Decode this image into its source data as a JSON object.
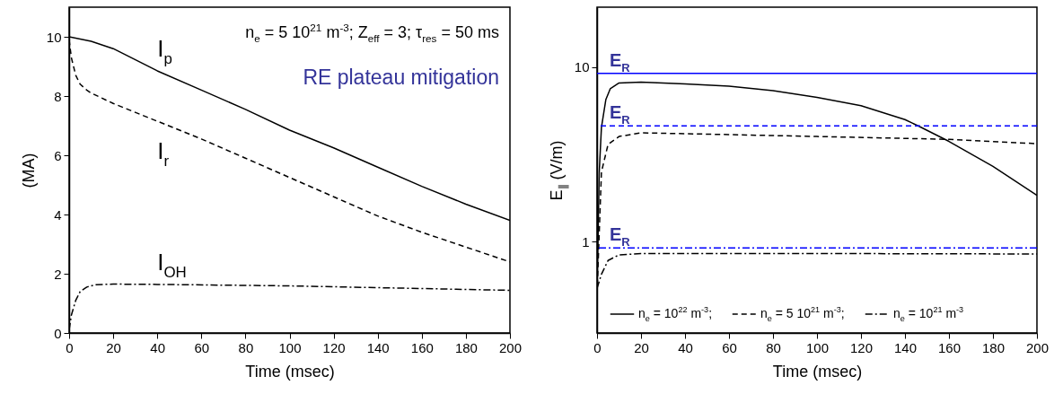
{
  "chart_data": [
    {
      "type": "line",
      "xlabel": "Time (msec)",
      "ylabel": "(MA)",
      "xlim": [
        0,
        200
      ],
      "ylim": [
        0,
        11
      ],
      "xticks": [
        0,
        20,
        40,
        60,
        80,
        100,
        120,
        140,
        160,
        180,
        200
      ],
      "yticks": [
        0,
        2,
        4,
        6,
        8,
        10
      ],
      "grid": false,
      "legend": false,
      "series": [
        {
          "name": "I$_{p}$",
          "color": "#000000",
          "line_style": "solid",
          "x": [
            0,
            10,
            20,
            40,
            60,
            80,
            100,
            120,
            140,
            160,
            180,
            200
          ],
          "values": [
            10,
            9.85,
            9.6,
            8.85,
            8.2,
            7.55,
            6.85,
            6.25,
            5.6,
            4.95,
            4.35,
            3.8
          ]
        },
        {
          "name": "I$_{r}$",
          "color": "#000000",
          "line_style": "dashed",
          "x": [
            0,
            1,
            3,
            5,
            8,
            10,
            20,
            40,
            60,
            80,
            100,
            120,
            140,
            160,
            180,
            200
          ],
          "values": [
            9.9,
            9.3,
            8.7,
            8.4,
            8.2,
            8.1,
            7.75,
            7.15,
            6.55,
            5.9,
            5.25,
            4.6,
            3.95,
            3.4,
            2.9,
            2.4
          ]
        },
        {
          "name": "I$_{OH}$",
          "color": "#000000",
          "line_style": "dashdot",
          "x": [
            0,
            1,
            3,
            5,
            8,
            12,
            20,
            40,
            100,
            160,
            200
          ],
          "values": [
            0.1,
            0.6,
            1.1,
            1.4,
            1.55,
            1.63,
            1.65,
            1.64,
            1.59,
            1.5,
            1.44
          ]
        }
      ],
      "annotations": [
        "n$_{e}$ = 5 10$^{21}$ m$^{-3}$; Z$_{eff}$ = 3; τ$_{res}$ = 50 ms",
        "RE plateau mitigation"
      ]
    },
    {
      "type": "line",
      "xlabel": "Time (msec)",
      "ylabel": "E$_{∥}$ (V/m)",
      "xlim": [
        0,
        200
      ],
      "ylim": [
        0.3,
        22
      ],
      "xticks": [
        0,
        20,
        40,
        60,
        80,
        100,
        120,
        140,
        160,
        180,
        200
      ],
      "yticks": [
        1,
        10
      ],
      "log": "y",
      "grid": false,
      "legend": "bottom",
      "series": [
        {
          "name": "n$_{e}$ = 10$^{22}$ m$^{-3}$;",
          "color": "#000000",
          "line_style": "solid",
          "x": [
            0,
            1,
            2,
            4,
            6,
            10,
            20,
            40,
            60,
            80,
            100,
            120,
            140,
            146,
            160,
            180,
            200
          ],
          "values": [
            0.5,
            2.5,
            4.5,
            6.5,
            7.5,
            8.1,
            8.2,
            8.0,
            7.76,
            7.32,
            6.7,
            6.0,
            5.0,
            4.6,
            3.75,
            2.7,
            1.84
          ]
        },
        {
          "name": "n$_{e}$ = 5 10$^{21}$ m$^{-3}$;",
          "color": "#000000",
          "line_style": "dashed",
          "x": [
            0,
            2,
            5,
            10,
            20,
            60,
            100,
            140,
            160,
            200
          ],
          "values": [
            0.5,
            2.5,
            3.6,
            4.0,
            4.2,
            4.1,
            4.0,
            3.9,
            3.85,
            3.64
          ]
        },
        {
          "name": "n$_{e}$ = 10$^{21}$ m$^{-3}$",
          "color": "#000000",
          "line_style": "dashdot",
          "x": [
            0,
            2,
            5,
            10,
            20,
            100,
            200
          ],
          "values": [
            0.54,
            0.65,
            0.78,
            0.84,
            0.855,
            0.855,
            0.85
          ]
        }
      ],
      "ref_lines": [
        {
          "axis": "y",
          "value": 9.2,
          "label": "E$_{R}$",
          "color": "#0000ff",
          "line_style": "solid"
        },
        {
          "axis": "y",
          "value": 4.6,
          "label": "E$_{R}$",
          "color": "#0000ff",
          "line_style": "dashed"
        },
        {
          "axis": "y",
          "value": 0.92,
          "label": "E$_{R}$",
          "color": "#0000ff",
          "line_style": "dashdot"
        }
      ]
    }
  ]
}
